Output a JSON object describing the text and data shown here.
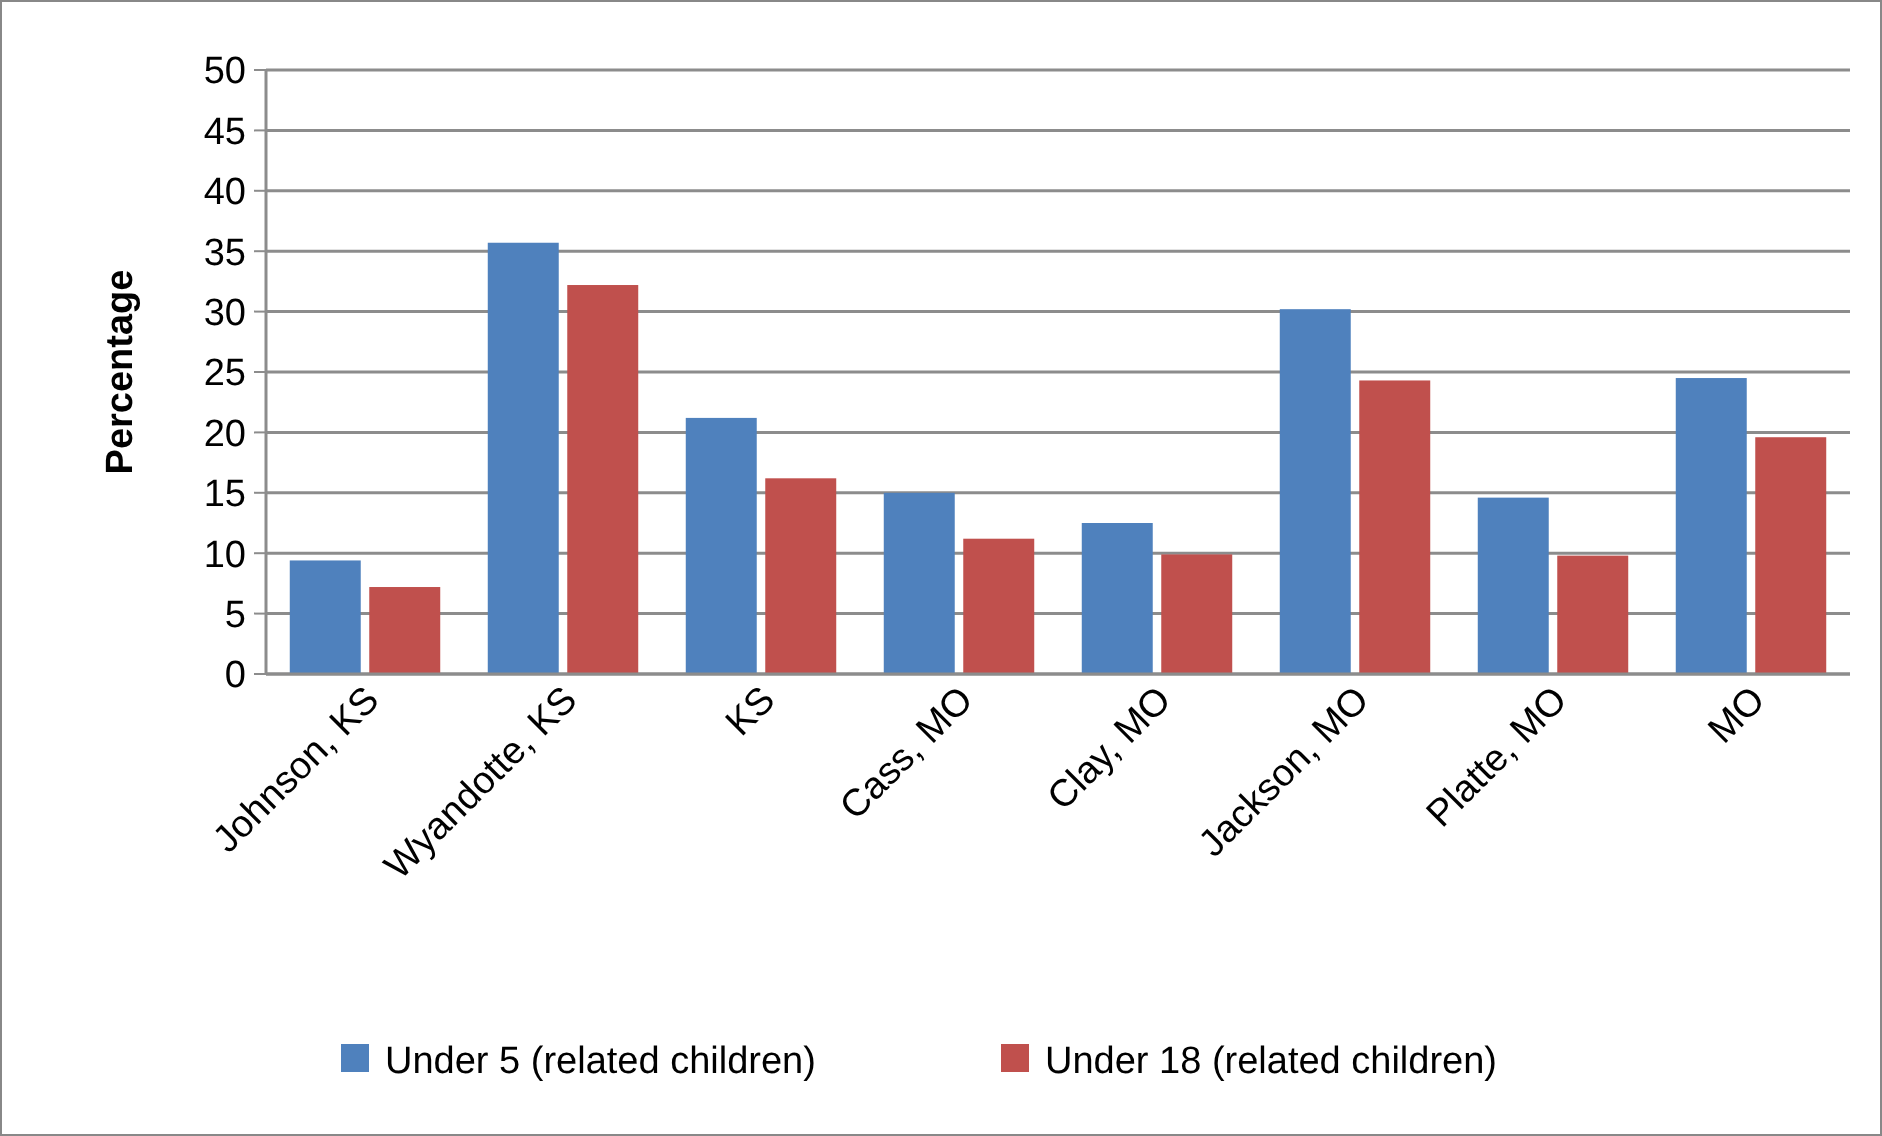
{
  "chart_data": {
    "type": "bar",
    "ylabel": "Percentage",
    "categories": [
      "Johnson, KS",
      "Wyandotte, KS",
      "KS",
      "Cass, MO",
      "Clay, MO",
      "Jackson, MO",
      "Platte, MO",
      "MO"
    ],
    "series": [
      {
        "name": "Under 5 (related children)",
        "color": "#4f81bd",
        "values": [
          9.4,
          35.7,
          21.2,
          15.0,
          12.5,
          30.2,
          14.6,
          24.5
        ]
      },
      {
        "name": "Under 18 (related children)",
        "color": "#c0504d",
        "values": [
          7.2,
          32.2,
          16.2,
          11.2,
          9.9,
          24.3,
          9.8,
          19.6
        ]
      }
    ],
    "ylim": [
      0,
      50
    ],
    "yticks": [
      0,
      5,
      10,
      15,
      20,
      25,
      30,
      35,
      40,
      45,
      50
    ],
    "grid": "y",
    "legend": "bottom"
  }
}
